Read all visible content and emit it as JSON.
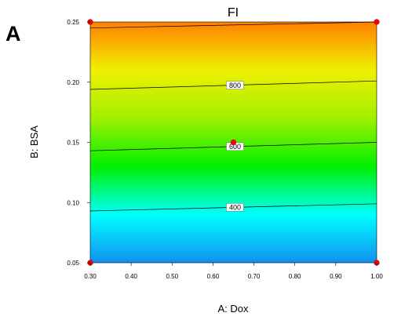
{
  "panel_label": "A",
  "chart_data": {
    "type": "heatmap",
    "subtype": "contour",
    "title": "FI",
    "xlabel": "A: Dox",
    "ylabel": "B: BSA",
    "xlim": [
      0.3,
      1.0
    ],
    "ylim": [
      0.05,
      0.25
    ],
    "x_ticks": [
      "0.30",
      "0.40",
      "0.50",
      "0.60",
      "0.70",
      "0.80",
      "0.90",
      "1.00"
    ],
    "y_ticks": [
      "0.05",
      "0.10",
      "0.15",
      "0.20",
      "0.25"
    ],
    "colormap": [
      "#1190f0",
      "#00ffff",
      "#00f000",
      "#a0f000",
      "#f0f000",
      "#ff8000"
    ],
    "contours": [
      {
        "label": "400",
        "points": [
          [
            0.3,
            0.093
          ],
          [
            1.0,
            0.099
          ]
        ]
      },
      {
        "label": "600",
        "points": [
          [
            0.3,
            0.143
          ],
          [
            1.0,
            0.15
          ]
        ]
      },
      {
        "label": "800",
        "points": [
          [
            0.3,
            0.194
          ],
          [
            1.0,
            0.201
          ]
        ]
      },
      {
        "label": "",
        "points": [
          [
            0.3,
            0.245
          ],
          [
            1.0,
            0.25
          ]
        ]
      }
    ],
    "design_points": [
      {
        "x": 0.3,
        "y": 0.05
      },
      {
        "x": 1.0,
        "y": 0.05
      },
      {
        "x": 0.3,
        "y": 0.25
      },
      {
        "x": 1.0,
        "y": 0.25
      },
      {
        "x": 0.65,
        "y": 0.15
      }
    ],
    "grid": false,
    "legend": "none"
  }
}
